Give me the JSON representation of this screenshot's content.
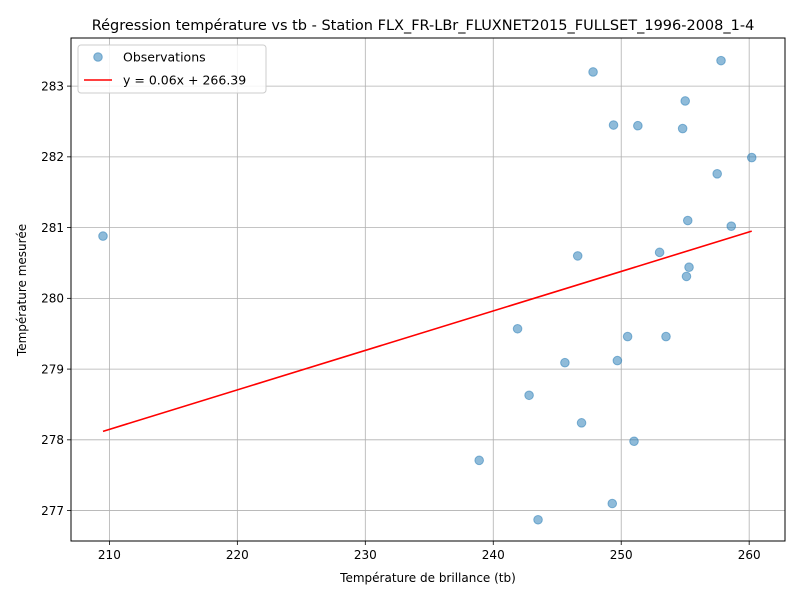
{
  "chart_data": {
    "type": "scatter",
    "title": "Régression température vs tb - Station FLX_FR-LBr_FLUXNET2015_FULLSET_1996-2008_1-4",
    "xlabel": "Température de brillance (tb)",
    "ylabel": "Température mesurée",
    "xlim": [
      207,
      262.8
    ],
    "ylim": [
      276.57,
      283.68
    ],
    "xticks": [
      210,
      220,
      230,
      240,
      250,
      260
    ],
    "yticks": [
      277,
      278,
      279,
      280,
      281,
      282,
      283
    ],
    "grid": true,
    "legend_position": "top-left",
    "colors": {
      "points": "#1f77b4",
      "line": "#ff0000",
      "grid": "#b0b0b0"
    },
    "series": [
      {
        "name": "Observations",
        "kind": "scatter",
        "points": [
          [
            209.5,
            280.88
          ],
          [
            241.9,
            279.57
          ],
          [
            242.8,
            278.63
          ],
          [
            243.5,
            276.87
          ],
          [
            238.9,
            277.71
          ],
          [
            245.6,
            279.09
          ],
          [
            246.6,
            280.6
          ],
          [
            246.9,
            278.24
          ],
          [
            247.8,
            283.2
          ],
          [
            249.3,
            277.1
          ],
          [
            249.4,
            282.45
          ],
          [
            249.7,
            279.12
          ],
          [
            250.5,
            279.46
          ],
          [
            251.0,
            277.98
          ],
          [
            251.3,
            282.44
          ],
          [
            253.0,
            280.65
          ],
          [
            253.5,
            279.46
          ],
          [
            254.8,
            282.4
          ],
          [
            255.0,
            282.79
          ],
          [
            255.1,
            280.31
          ],
          [
            255.2,
            281.1
          ],
          [
            255.3,
            280.44
          ],
          [
            257.5,
            281.76
          ],
          [
            257.8,
            283.36
          ],
          [
            258.6,
            281.02
          ],
          [
            260.2,
            281.99
          ]
        ]
      },
      {
        "name": "y = 0.06x + 266.39",
        "kind": "line",
        "points": [
          [
            209.5,
            278.12
          ],
          [
            260.2,
            280.95
          ]
        ]
      }
    ]
  }
}
